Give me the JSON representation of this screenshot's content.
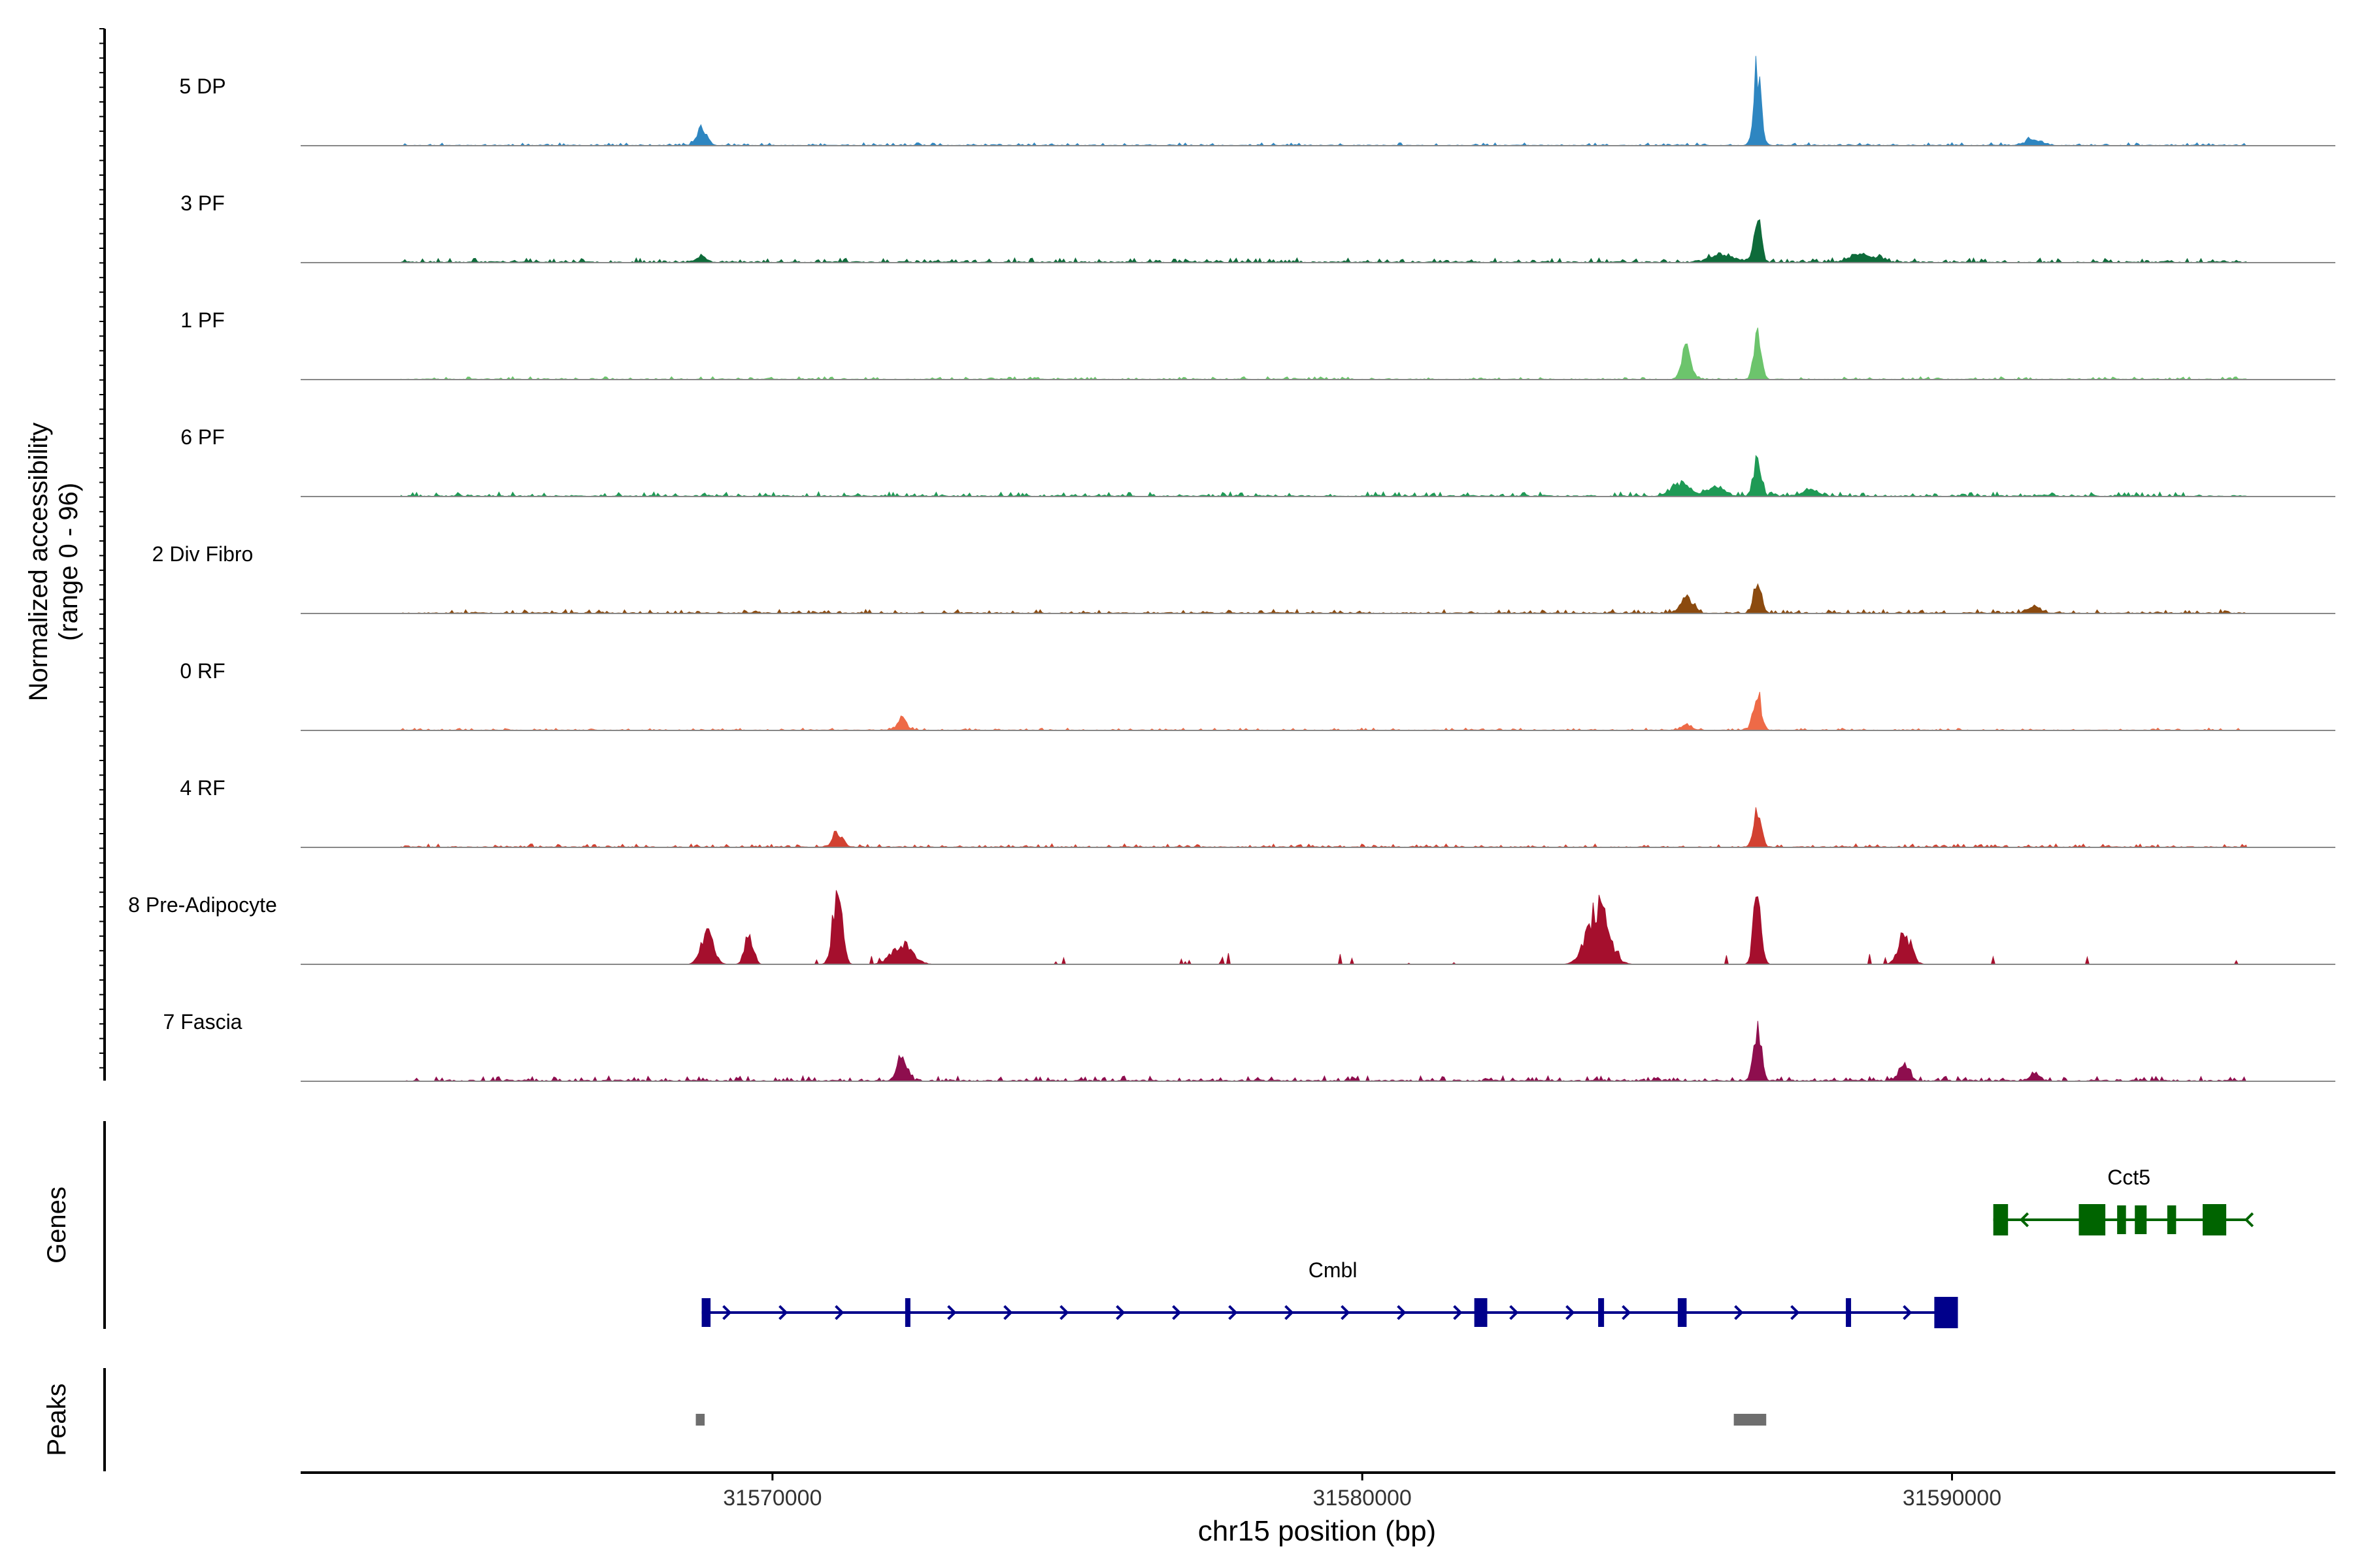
{
  "chart_data": {
    "type": "area",
    "title": "",
    "xlabel": "chr15 position (bp)",
    "ylabel_line1": "Normalized accessibility",
    "ylabel_line2": "(range 0 - 96)",
    "xlim": [
      31562000,
      31596500
    ],
    "ylim": [
      0,
      96
    ],
    "x_ticks": [
      {
        "value": 31570000,
        "label": "31570000"
      },
      {
        "value": 31580000,
        "label": "31580000"
      },
      {
        "value": 31590000,
        "label": "31590000"
      }
    ],
    "signal_range_bp": [
      31563700,
      31595000
    ],
    "series": [
      {
        "name": "5 DP",
        "color": "#2E86C1",
        "noise": 0.05,
        "seed": 11,
        "peaks": [
          [
            31568800,
            120,
            0.23
          ],
          [
            31586700,
            90,
            1.0
          ],
          [
            31591400,
            200,
            0.08
          ]
        ]
      },
      {
        "name": "3 PF",
        "color": "#0E6B3A",
        "noise": 0.08,
        "seed": 23,
        "peaks": [
          [
            31568800,
            120,
            0.08
          ],
          [
            31586100,
            300,
            0.1
          ],
          [
            31586700,
            90,
            0.55
          ],
          [
            31588500,
            300,
            0.1
          ]
        ]
      },
      {
        "name": "1 PF",
        "color": "#6CC46C",
        "noise": 0.05,
        "seed": 37,
        "peaks": [
          [
            31585500,
            110,
            0.4
          ],
          [
            31586700,
            90,
            0.55
          ]
        ]
      },
      {
        "name": "6 PF",
        "color": "#1E9A55",
        "noise": 0.08,
        "seed": 41,
        "peaks": [
          [
            31585400,
            200,
            0.18
          ],
          [
            31586000,
            200,
            0.12
          ],
          [
            31586700,
            90,
            0.55
          ],
          [
            31587600,
            150,
            0.1
          ]
        ]
      },
      {
        "name": "2 Div Fibro",
        "color": "#8B4A0F",
        "noise": 0.07,
        "seed": 53,
        "peaks": [
          [
            31585500,
            150,
            0.18
          ],
          [
            31586700,
            90,
            0.4
          ],
          [
            31591400,
            150,
            0.08
          ]
        ]
      },
      {
        "name": "0 RF",
        "color": "#EE6A47",
        "noise": 0.04,
        "seed": 61,
        "peaks": [
          [
            31572200,
            100,
            0.18
          ],
          [
            31585500,
            120,
            0.07
          ],
          [
            31586700,
            90,
            0.5
          ]
        ]
      },
      {
        "name": "4 RF",
        "color": "#D24131",
        "noise": 0.06,
        "seed": 71,
        "peaks": [
          [
            31571100,
            110,
            0.2
          ],
          [
            31586700,
            90,
            0.5
          ]
        ]
      },
      {
        "name": "8 Pre-Adipocyte",
        "color": "#A50F2D",
        "noise": 0.0,
        "seed": 83,
        "peaks": [
          [
            31568900,
            150,
            0.4
          ],
          [
            31569600,
            100,
            0.4
          ],
          [
            31571100,
            110,
            0.95
          ],
          [
            31572200,
            250,
            0.25
          ],
          [
            31584000,
            250,
            0.75
          ],
          [
            31586700,
            90,
            0.95
          ],
          [
            31589200,
            150,
            0.4
          ]
        ]
      },
      {
        "name": "7 Fascia",
        "color": "#8E0E4E",
        "noise": 0.09,
        "seed": 97,
        "peaks": [
          [
            31572200,
            120,
            0.3
          ],
          [
            31586700,
            90,
            0.7
          ],
          [
            31589200,
            120,
            0.2
          ],
          [
            31591400,
            120,
            0.1
          ]
        ]
      }
    ],
    "genes_label": "Genes",
    "genes": [
      {
        "name": "Cmbl",
        "start": 31568800,
        "end": 31590000,
        "strand": "+",
        "color": "#00008B",
        "exons": [
          [
            31568800,
            31568950
          ],
          [
            31572250,
            31572300
          ],
          [
            31581900,
            31582120
          ],
          [
            31584000,
            31584100
          ],
          [
            31585350,
            31585500
          ],
          [
            31588200,
            31588280
          ],
          [
            31589700,
            31590100
          ]
        ]
      },
      {
        "name": "Cct5",
        "start": 31590700,
        "end": 31595000,
        "strand": "-",
        "color": "#006400",
        "exons": [
          [
            31590700,
            31590950
          ],
          [
            31592150,
            31592600
          ],
          [
            31592800,
            31592950
          ],
          [
            31593100,
            31593300
          ],
          [
            31593650,
            31593800
          ],
          [
            31594250,
            31594650
          ]
        ]
      }
    ],
    "peaks_label": "Peaks",
    "peaks_regions": [
      [
        31568700,
        31568850
      ],
      [
        31586300,
        31586850
      ]
    ],
    "peaks_color": "#6E6E6E"
  }
}
